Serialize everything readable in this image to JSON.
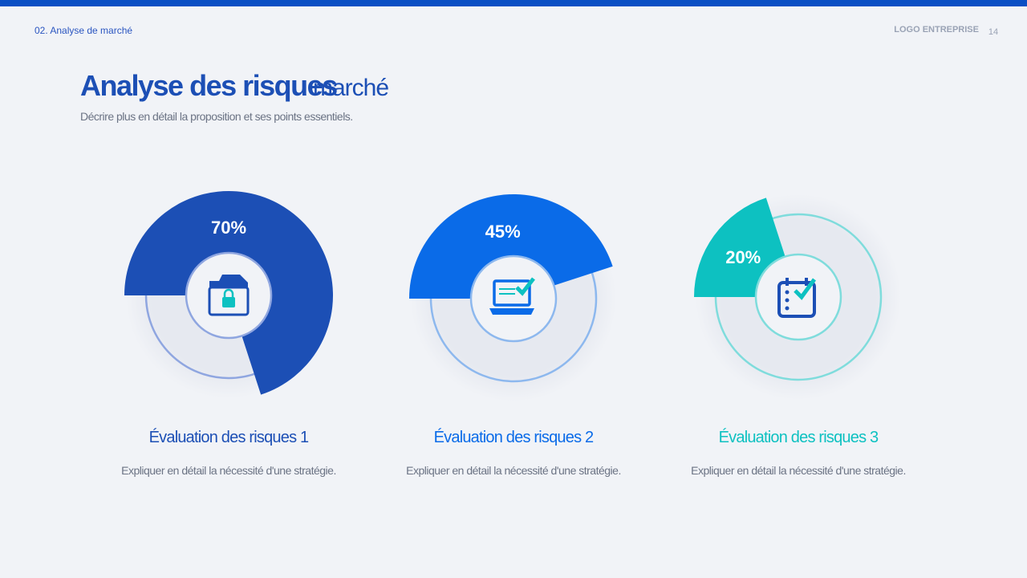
{
  "header": {
    "section": "02. Analyse de marché",
    "logo": "LOGO ENTREPRISE",
    "page": "14"
  },
  "title": {
    "main": "Analyse des risques",
    "accent": "marché"
  },
  "subtitle": "Décrire plus en détail la proposition et ses points essentiels.",
  "items": [
    {
      "value": 70,
      "value_label": "70%",
      "color": "#1c4fb5",
      "heading": "Évaluation des risques 1",
      "text": "Expliquer en détail la nécessité d'une stratégie."
    },
    {
      "value": 45,
      "value_label": "45%",
      "color": "#0a6be8",
      "heading": "Évaluation des risques 2",
      "text": "Expliquer en détail la nécessité d'une stratégie."
    },
    {
      "value": 20,
      "value_label": "20%",
      "color": "#0dc1c1",
      "heading": "Évaluation des risques 3",
      "text": "Expliquer en détail la nécessité d'une stratégie."
    }
  ]
}
